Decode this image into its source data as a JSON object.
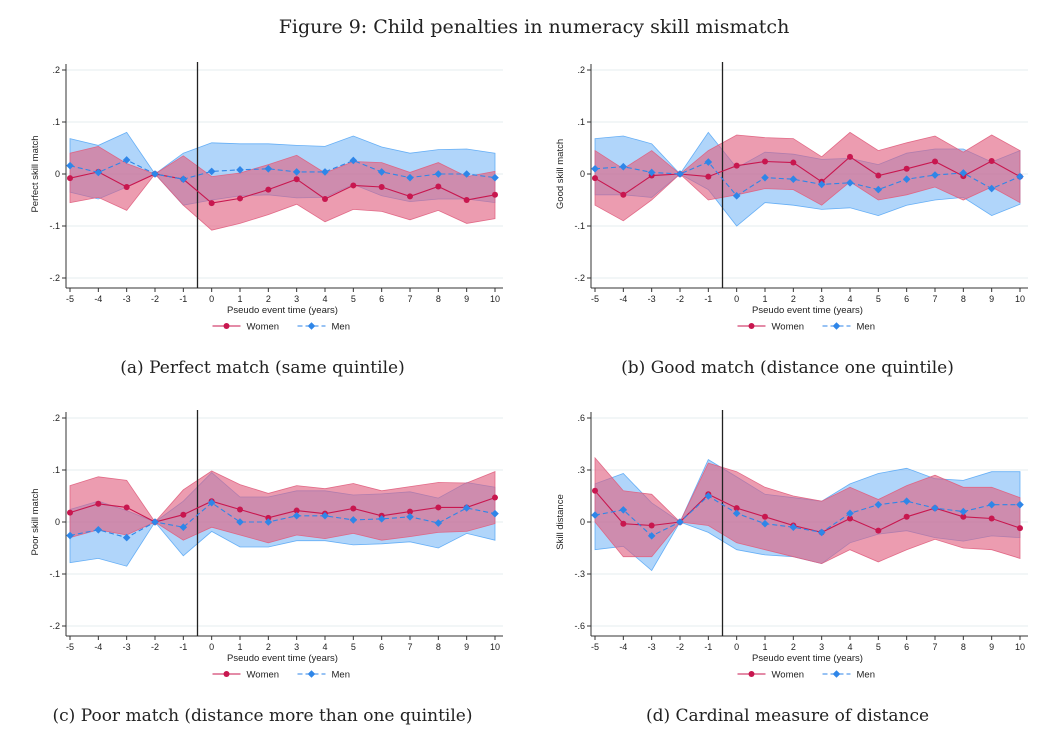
{
  "figure_title": "Figure 9: Child penalties in numeracy skill mismatch",
  "legend": {
    "women": "Women",
    "men": "Men"
  },
  "colors": {
    "women": "#c8174f",
    "men": "#2f86e8",
    "women_band": "#e0607f",
    "men_band": "#5aa8f5",
    "event_line": "#222222",
    "grid": "#e6ecef"
  },
  "chart_data": [
    {
      "type": "line",
      "id": "a",
      "caption": "(a) Perfect match (same quintile)",
      "xlabel": "Pseudo event time (years)",
      "ylabel": "Perfect skill match",
      "x": [
        -5,
        -4,
        -3,
        -2,
        -1,
        0,
        1,
        2,
        3,
        4,
        5,
        6,
        7,
        8,
        9,
        10
      ],
      "x_ticks": [
        "-5",
        "-4",
        "-3",
        "-2",
        "-1",
        "0",
        "1",
        "2",
        "3",
        "4",
        "5",
        "6",
        "7",
        "8",
        "9",
        "10"
      ],
      "ylim": [
        -0.2,
        0.2
      ],
      "y_ticks": [
        -0.2,
        -0.1,
        0,
        0.1,
        0.2
      ],
      "y_tick_labels": [
        "-.2",
        "-.1",
        "0",
        ".1",
        ".2"
      ],
      "event_line_x": -0.5,
      "series": [
        {
          "name": "Women",
          "values": [
            -0.008,
            0.004,
            -0.025,
            0,
            -0.01,
            -0.056,
            -0.047,
            -0.03,
            -0.01,
            -0.048,
            -0.022,
            -0.025,
            -0.043,
            -0.024,
            -0.05,
            -0.04
          ],
          "lower": [
            -0.055,
            -0.045,
            -0.07,
            0,
            -0.06,
            -0.108,
            -0.095,
            -0.078,
            -0.058,
            -0.092,
            -0.068,
            -0.072,
            -0.088,
            -0.07,
            -0.095,
            -0.086
          ],
          "upper": [
            0.04,
            0.053,
            0.02,
            0,
            0.035,
            -0.005,
            0.002,
            0.018,
            0.036,
            0.002,
            0.024,
            0.022,
            0.003,
            0.022,
            -0.005,
            0.005
          ]
        },
        {
          "name": "Men",
          "values": [
            0.016,
            0.003,
            0.027,
            0,
            -0.01,
            0.005,
            0.008,
            0.01,
            0.004,
            0.004,
            0.026,
            0.004,
            -0.007,
            0,
            0,
            -0.007
          ],
          "lower": [
            -0.035,
            -0.048,
            -0.025,
            0,
            -0.06,
            -0.05,
            -0.042,
            -0.04,
            -0.046,
            -0.045,
            -0.02,
            -0.042,
            -0.053,
            -0.048,
            -0.048,
            -0.055
          ],
          "upper": [
            0.068,
            0.055,
            0.08,
            0,
            0.04,
            0.06,
            0.058,
            0.058,
            0.055,
            0.053,
            0.073,
            0.052,
            0.04,
            0.047,
            0.048,
            0.04
          ]
        }
      ]
    },
    {
      "type": "line",
      "id": "b",
      "caption": "(b) Good match (distance one quintile)",
      "xlabel": "Pseudo event time (years)",
      "ylabel": "Good skill match",
      "x": [
        -5,
        -4,
        -3,
        -2,
        -1,
        0,
        1,
        2,
        3,
        4,
        5,
        6,
        7,
        8,
        9,
        10
      ],
      "x_ticks": [
        "-5",
        "-4",
        "-3",
        "-2",
        "-1",
        "0",
        "1",
        "2",
        "3",
        "4",
        "5",
        "6",
        "7",
        "8",
        "9",
        "10"
      ],
      "ylim": [
        -0.2,
        0.2
      ],
      "y_ticks": [
        -0.2,
        -0.1,
        0,
        0.1,
        0.2
      ],
      "y_tick_labels": [
        "-.2",
        "-.1",
        "0",
        ".1",
        ".2"
      ],
      "event_line_x": -0.5,
      "series": [
        {
          "name": "Women",
          "values": [
            -0.008,
            -0.04,
            -0.003,
            0,
            -0.005,
            0.016,
            0.024,
            0.022,
            -0.015,
            0.033,
            -0.003,
            0.01,
            0.024,
            -0.004,
            0.025,
            -0.005
          ],
          "lower": [
            -0.06,
            -0.09,
            -0.05,
            0,
            -0.05,
            -0.04,
            -0.028,
            -0.03,
            -0.06,
            -0.015,
            -0.05,
            -0.04,
            -0.025,
            -0.05,
            -0.025,
            -0.055
          ],
          "upper": [
            0.045,
            0.01,
            0.045,
            0,
            0.045,
            0.075,
            0.07,
            0.068,
            0.033,
            0.08,
            0.045,
            0.06,
            0.073,
            0.042,
            0.075,
            0.045
          ]
        },
        {
          "name": "Men",
          "values": [
            0.01,
            0.014,
            0.003,
            0,
            0.023,
            -0.042,
            -0.007,
            -0.01,
            -0.02,
            -0.017,
            -0.03,
            -0.01,
            -0.002,
            0.002,
            -0.028,
            -0.005
          ],
          "lower": [
            -0.04,
            -0.04,
            -0.045,
            0,
            -0.03,
            -0.1,
            -0.055,
            -0.06,
            -0.068,
            -0.065,
            -0.08,
            -0.06,
            -0.05,
            -0.045,
            -0.08,
            -0.058
          ],
          "upper": [
            0.068,
            0.073,
            0.058,
            0,
            0.08,
            0.012,
            0.042,
            0.038,
            0.028,
            0.03,
            0.018,
            0.04,
            0.048,
            0.048,
            0.023,
            0.045
          ]
        }
      ]
    },
    {
      "type": "line",
      "id": "c",
      "caption": "(c) Poor match (distance more than one quintile)",
      "xlabel": "Pseudo event time (years)",
      "ylabel": "Poor skill match",
      "x": [
        -5,
        -4,
        -3,
        -2,
        -1,
        0,
        1,
        2,
        3,
        4,
        5,
        6,
        7,
        8,
        9,
        10
      ],
      "x_ticks": [
        "-5",
        "-4",
        "-3",
        "-2",
        "-1",
        "0",
        "1",
        "2",
        "3",
        "4",
        "5",
        "6",
        "7",
        "8",
        "9",
        "10"
      ],
      "ylim": [
        -0.2,
        0.2
      ],
      "y_ticks": [
        -0.2,
        -0.1,
        0,
        0.1,
        0.2
      ],
      "y_tick_labels": [
        "-.2",
        "-.1",
        "0",
        ".1",
        ".2"
      ],
      "event_line_x": -0.5,
      "series": [
        {
          "name": "Women",
          "values": [
            0.018,
            0.035,
            0.028,
            0,
            0.014,
            0.04,
            0.024,
            0.008,
            0.022,
            0.016,
            0.026,
            0.012,
            0.02,
            0.028,
            0.028,
            0.047
          ],
          "lower": [
            -0.03,
            -0.015,
            -0.025,
            0,
            -0.035,
            -0.01,
            -0.025,
            -0.04,
            -0.025,
            -0.032,
            -0.022,
            -0.035,
            -0.028,
            -0.02,
            -0.018,
            -0.003
          ],
          "upper": [
            0.07,
            0.087,
            0.08,
            0,
            0.062,
            0.098,
            0.072,
            0.055,
            0.07,
            0.064,
            0.074,
            0.06,
            0.068,
            0.076,
            0.075,
            0.097
          ]
        },
        {
          "name": "Men",
          "values": [
            -0.026,
            -0.015,
            -0.03,
            0,
            -0.01,
            0.037,
            0,
            0,
            0.012,
            0.012,
            0.004,
            0.006,
            0.01,
            -0.002,
            0.027,
            0.016
          ],
          "lower": [
            -0.078,
            -0.07,
            -0.085,
            0,
            -0.065,
            -0.018,
            -0.048,
            -0.048,
            -0.036,
            -0.036,
            -0.044,
            -0.042,
            -0.038,
            -0.05,
            -0.022,
            -0.035
          ],
          "upper": [
            0.024,
            0.04,
            0.022,
            0,
            0.04,
            0.095,
            0.048,
            0.048,
            0.06,
            0.06,
            0.052,
            0.054,
            0.058,
            0.046,
            0.076,
            0.067
          ]
        }
      ]
    },
    {
      "type": "line",
      "id": "d",
      "caption": "(d) Cardinal measure of distance",
      "xlabel": "Pseudo event time (years)",
      "ylabel": "Skill distance",
      "x": [
        -5,
        -4,
        -3,
        -2,
        -1,
        0,
        1,
        2,
        3,
        4,
        5,
        6,
        7,
        8,
        9,
        10
      ],
      "x_ticks": [
        "-5",
        "-4",
        "-3",
        "-2",
        "-1",
        "0",
        "1",
        "2",
        "3",
        "4",
        "5",
        "6",
        "7",
        "8",
        "9",
        "10"
      ],
      "ylim": [
        -0.6,
        0.6
      ],
      "y_ticks": [
        -0.6,
        -0.3,
        0,
        0.3,
        0.6
      ],
      "y_tick_labels": [
        "-.6",
        "-.3",
        "0",
        ".3",
        ".6"
      ],
      "event_line_x": -0.5,
      "series": [
        {
          "name": "Women",
          "values": [
            0.18,
            -0.01,
            -0.02,
            0,
            0.16,
            0.08,
            0.03,
            -0.02,
            -0.06,
            0.02,
            -0.05,
            0.03,
            0.08,
            0.03,
            0.02,
            -0.035
          ],
          "lower": [
            0.0,
            -0.2,
            -0.2,
            0,
            -0.02,
            -0.12,
            -0.16,
            -0.2,
            -0.24,
            -0.16,
            -0.23,
            -0.16,
            -0.1,
            -0.15,
            -0.16,
            -0.21
          ],
          "upper": [
            0.37,
            0.18,
            0.16,
            0,
            0.34,
            0.29,
            0.2,
            0.15,
            0.12,
            0.2,
            0.13,
            0.21,
            0.27,
            0.2,
            0.2,
            0.14
          ]
        },
        {
          "name": "Men",
          "values": [
            0.04,
            0.07,
            -0.08,
            0,
            0.15,
            0.05,
            -0.01,
            -0.03,
            -0.06,
            0.05,
            0.1,
            0.12,
            0.08,
            0.06,
            0.1,
            0.1
          ],
          "lower": [
            -0.16,
            -0.14,
            -0.28,
            0,
            -0.06,
            -0.16,
            -0.19,
            -0.2,
            -0.24,
            -0.12,
            -0.07,
            -0.05,
            -0.09,
            -0.11,
            -0.08,
            -0.09
          ],
          "upper": [
            0.22,
            0.28,
            0.11,
            0,
            0.36,
            0.26,
            0.16,
            0.14,
            0.12,
            0.22,
            0.28,
            0.31,
            0.25,
            0.24,
            0.29,
            0.29
          ]
        }
      ]
    }
  ]
}
